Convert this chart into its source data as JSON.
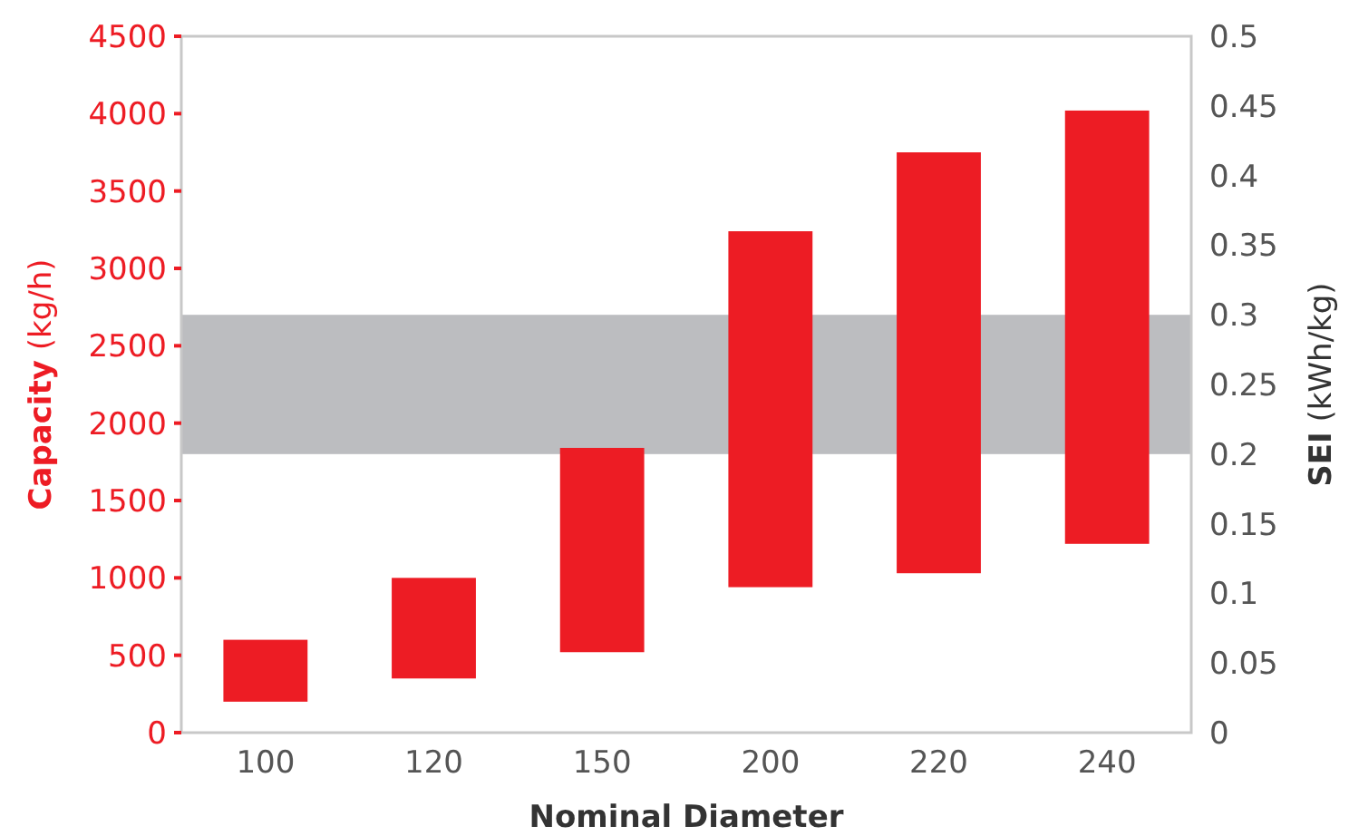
{
  "chart_data": {
    "type": "bar",
    "xlabel": "Nominal Diameter",
    "ylabel": "Capacity (kg/h)",
    "y2label": "SEI (kWh/kg)",
    "categories": [
      "100",
      "120",
      "150",
      "200",
      "220",
      "240"
    ],
    "values": [
      400,
      650,
      1320,
      2300,
      2720,
      2800
    ],
    "base": [
      200,
      350,
      520,
      940,
      1030,
      1220
    ],
    "color": "#ed1c24",
    "ylim": [
      0,
      4500
    ],
    "yticks": [
      0,
      500,
      1000,
      1500,
      2000,
      2500,
      3000,
      3500,
      4000,
      4500
    ],
    "y2lim": [
      0,
      0.5
    ],
    "y2ticks": [
      0,
      0.05,
      0.1,
      0.15,
      0.2,
      0.25,
      0.3,
      0.35,
      0.4,
      0.45,
      0.5
    ],
    "bands": [
      {
        "axis": "y2",
        "from": 0.2,
        "to": 0.3,
        "color": "#bcbdc0"
      }
    ],
    "grid": false
  }
}
